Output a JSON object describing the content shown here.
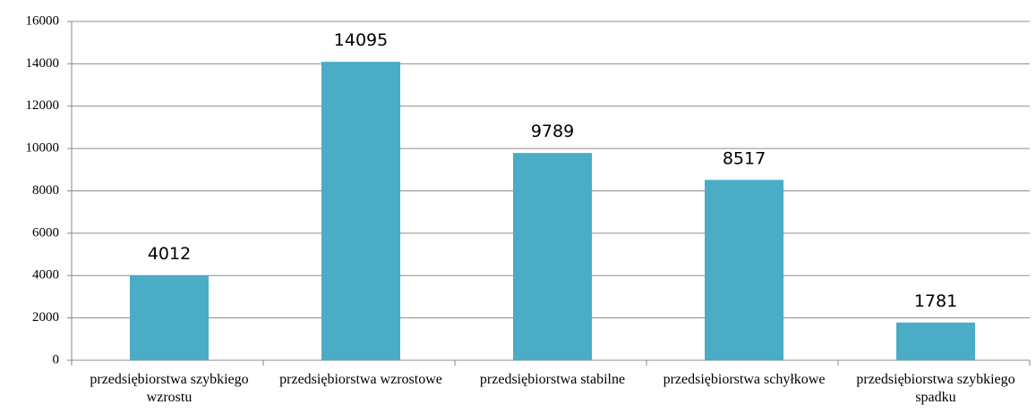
{
  "chart_data": {
    "type": "bar",
    "categories": [
      "przedsiębiorstwa szybkiego wzrostu",
      "przedsiębiorstwa wzrostowe",
      "przedsiębiorstwa stabilne",
      "przedsiębiorstwa schyłkowe",
      "przedsiębiorstwa szybkiego spadku"
    ],
    "values": [
      4012,
      14095,
      9789,
      8517,
      1781
    ],
    "color": "#4bacc6",
    "ylim": [
      0,
      16000
    ],
    "yticks": [
      0,
      2000,
      4000,
      6000,
      8000,
      10000,
      12000,
      14000,
      16000
    ],
    "grid": true
  }
}
